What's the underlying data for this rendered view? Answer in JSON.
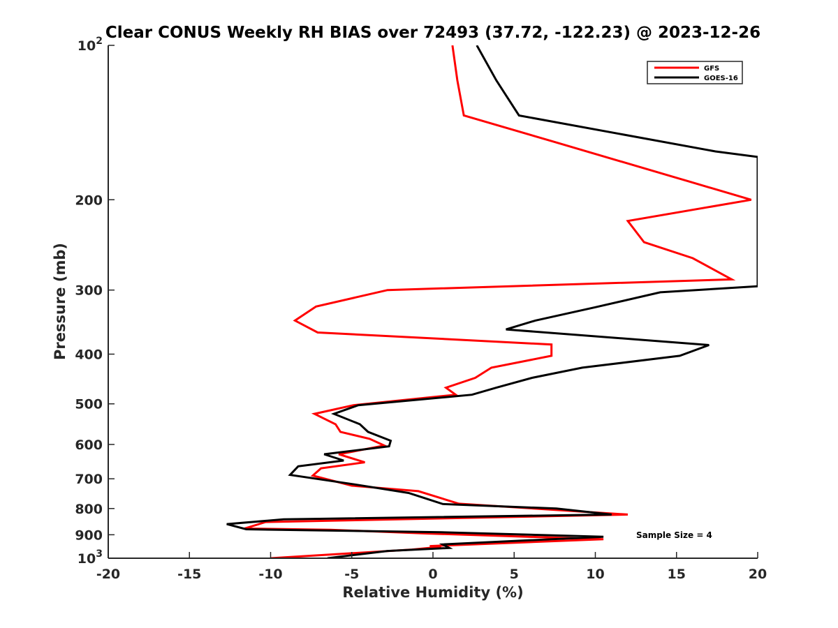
{
  "chart_data": {
    "type": "line",
    "title": "Clear CONUS Weekly RH BIAS over 72493 (37.72, -122.23) @ 2023-12-26",
    "xlabel": "Relative Humidity (%)",
    "ylabel": "Pressure (mb)",
    "xlim": [
      -20,
      20
    ],
    "ylim": [
      1000,
      100
    ],
    "y_scale": "log",
    "y_reversed": true,
    "grid": false,
    "legend_position": "top-right",
    "x_ticks": [
      -20,
      -15,
      -10,
      -5,
      0,
      5,
      10,
      15,
      20
    ],
    "x_tick_labels": [
      "-20",
      "-15",
      "-10",
      "-5",
      "0",
      "5",
      "10",
      "15",
      "20"
    ],
    "y_ticks": [
      {
        "value": 100,
        "label": "10",
        "sup": "2"
      },
      {
        "value": 200,
        "label": "200",
        "sup": ""
      },
      {
        "value": 300,
        "label": "300",
        "sup": ""
      },
      {
        "value": 400,
        "label": "400",
        "sup": ""
      },
      {
        "value": 500,
        "label": "500",
        "sup": ""
      },
      {
        "value": 600,
        "label": "600",
        "sup": ""
      },
      {
        "value": 700,
        "label": "700",
        "sup": ""
      },
      {
        "value": 800,
        "label": "800",
        "sup": ""
      },
      {
        "value": 900,
        "label": "900",
        "sup": ""
      },
      {
        "value": 1000,
        "label": "10",
        "sup": "3"
      }
    ],
    "annotation": "Sample Size = 4",
    "series": [
      {
        "name": "GFS",
        "color": "#ff0000",
        "points": [
          [
            1.2,
            100
          ],
          [
            1.5,
            117
          ],
          [
            1.9,
            137
          ],
          [
            7.4,
            154
          ],
          [
            15.7,
            184
          ],
          [
            19.6,
            200
          ],
          [
            12.0,
            220
          ],
          [
            13.0,
            242
          ],
          [
            16.0,
            260
          ],
          [
            18.4,
            286
          ],
          [
            -2.8,
            300
          ],
          [
            -7.2,
            323
          ],
          [
            -8.5,
            344
          ],
          [
            -7.1,
            363
          ],
          [
            7.3,
            383
          ],
          [
            7.3,
            403
          ],
          [
            3.6,
            425
          ],
          [
            2.6,
            445
          ],
          [
            0.8,
            465
          ],
          [
            1.4,
            480
          ],
          [
            -4.9,
            503
          ],
          [
            -7.3,
            523
          ],
          [
            -6.0,
            548
          ],
          [
            -5.7,
            567
          ],
          [
            -3.9,
            585
          ],
          [
            -3.0,
            603
          ],
          [
            -5.8,
            627
          ],
          [
            -4.2,
            650
          ],
          [
            -6.9,
            668
          ],
          [
            -7.4,
            690
          ],
          [
            -5.0,
            722
          ],
          [
            -0.9,
            740
          ],
          [
            1.6,
            783
          ],
          [
            12.0,
            822
          ],
          [
            -10.3,
            850
          ],
          [
            -11.6,
            875
          ],
          [
            -6.3,
            880
          ],
          [
            -0.3,
            895
          ],
          [
            10.5,
            918
          ],
          [
            -0.2,
            947
          ],
          [
            0.5,
            950
          ],
          [
            -1.3,
            962
          ],
          [
            -10.0,
            1000
          ]
        ]
      },
      {
        "name": "GOES-16",
        "color": "#000000",
        "points": [
          [
            2.7,
            100
          ],
          [
            3.9,
            117
          ],
          [
            5.3,
            137
          ],
          [
            17.4,
            161
          ],
          [
            20.0,
            165
          ],
          [
            20.0,
            295
          ],
          [
            14.0,
            303
          ],
          [
            10.0,
            324
          ],
          [
            6.3,
            344
          ],
          [
            4.5,
            358
          ],
          [
            17.0,
            384
          ],
          [
            15.2,
            403
          ],
          [
            9.2,
            425
          ],
          [
            6.1,
            445
          ],
          [
            3.9,
            465
          ],
          [
            2.4,
            480
          ],
          [
            -4.6,
            503
          ],
          [
            -6.1,
            523
          ],
          [
            -4.5,
            548
          ],
          [
            -4.0,
            567
          ],
          [
            -2.6,
            590
          ],
          [
            -2.7,
            605
          ],
          [
            -6.7,
            627
          ],
          [
            -5.5,
            645
          ],
          [
            -8.3,
            662
          ],
          [
            -8.8,
            688
          ],
          [
            -4.8,
            718
          ],
          [
            -1.5,
            746
          ],
          [
            -0.6,
            762
          ],
          [
            0.6,
            784
          ],
          [
            7.6,
            800
          ],
          [
            11.0,
            822
          ],
          [
            -9.2,
            840
          ],
          [
            -12.7,
            858
          ],
          [
            -11.5,
            878
          ],
          [
            0.5,
            890
          ],
          [
            10.5,
            908
          ],
          [
            0.6,
            940
          ],
          [
            1.0,
            955
          ],
          [
            -2.8,
            968
          ],
          [
            -6.5,
            1000
          ]
        ]
      }
    ]
  }
}
